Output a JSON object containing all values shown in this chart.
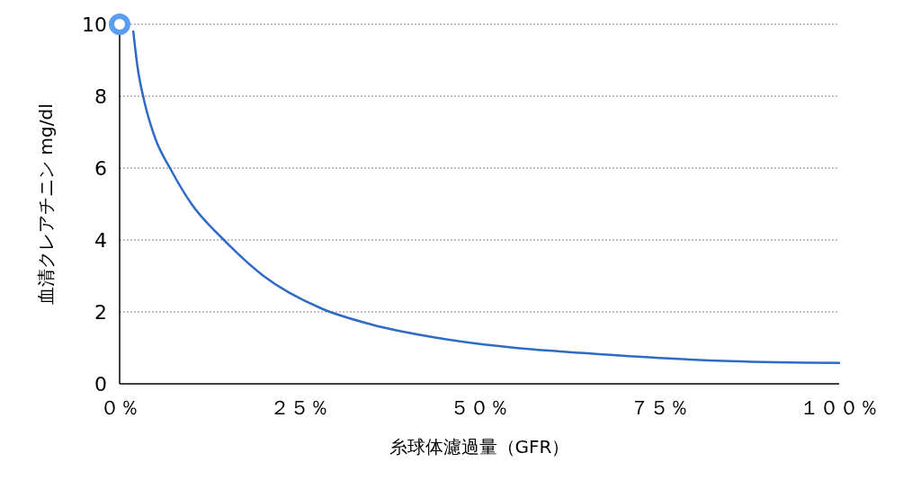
{
  "chart_data": {
    "type": "line",
    "xlabel": "糸球体濾過量（GFR）",
    "ylabel": "血清クレアチニン mg/dl",
    "xlim": [
      0,
      100
    ],
    "ylim": [
      0,
      10
    ],
    "xticks": [
      {
        "value": 0,
        "label": "０％"
      },
      {
        "value": 25,
        "label": "２５％"
      },
      {
        "value": 50,
        "label": "５０％"
      },
      {
        "value": 75,
        "label": "７５％"
      },
      {
        "value": 100,
        "label": "１００％"
      }
    ],
    "yticks": [
      0,
      2,
      4,
      6,
      8,
      10
    ],
    "grid": "y",
    "series": [
      {
        "color": "#2f6bc4",
        "x": [
          1.9,
          2.5,
          3.5,
          5,
          7,
          10,
          14.5,
          20,
          28,
          35,
          45,
          55,
          65,
          75,
          85,
          100
        ],
        "values": [
          9.8,
          8.8,
          7.8,
          6.8,
          6.0,
          5.0,
          4.0,
          3.0,
          2.1,
          1.65,
          1.25,
          1.0,
          0.85,
          0.72,
          0.63,
          0.58
        ]
      },
      {
        "type": "scatter",
        "color": "#5b9ef0",
        "marker": "circle",
        "x": [
          0
        ],
        "values": [
          10
        ]
      }
    ]
  }
}
